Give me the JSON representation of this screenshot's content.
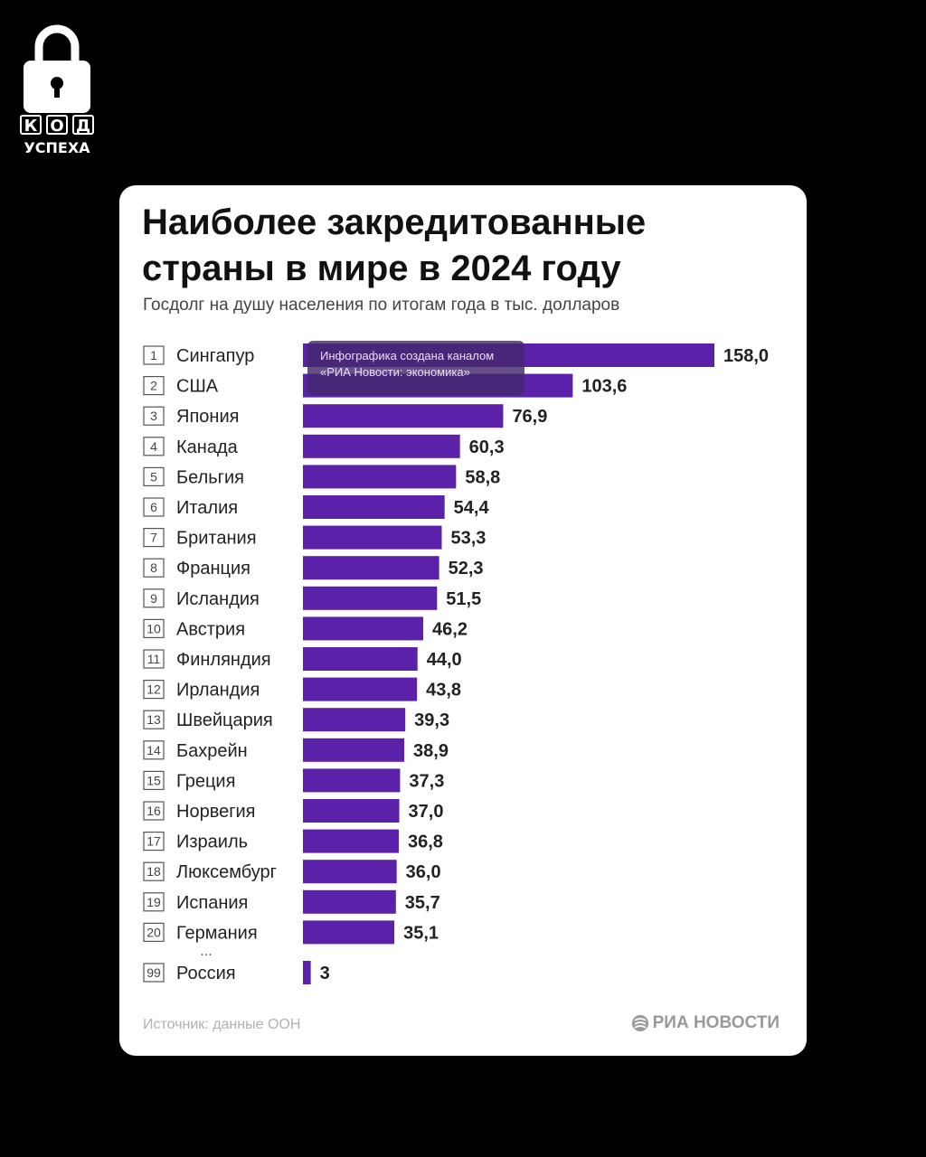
{
  "logo": {
    "letters": [
      "К",
      "О",
      "Д"
    ],
    "subtitle": "УСПЕХА",
    "icon": "padlock-icon"
  },
  "card": {
    "title": "Наиболее закредитованные страны в мире в 2024 году",
    "subtitle": "Госдолг на душу населения по итогам года в тыс. долларов",
    "source": "Источник: данные ООН",
    "brand": "РИА НОВОСТИ",
    "watermark": [
      "Инфографика создана каналом",
      "«РИА Новости: экономика»"
    ],
    "ellipsis": "..."
  },
  "colors": {
    "bar": "#5b21a8",
    "background": "#000000",
    "card": "#ffffff"
  },
  "chart_data": {
    "type": "bar",
    "orientation": "horizontal",
    "title": "Наиболее закредитованные страны в мире в 2024 году",
    "subtitle": "Госдолг на душу населения по итогам года в тыс. долларов",
    "ranks": [
      "1",
      "2",
      "3",
      "4",
      "5",
      "6",
      "7",
      "8",
      "9",
      "10",
      "11",
      "12",
      "13",
      "14",
      "15",
      "16",
      "17",
      "18",
      "19",
      "20",
      "99"
    ],
    "categories": [
      "Сингапур",
      "США",
      "Япония",
      "Канада",
      "Бельгия",
      "Италия",
      "Британия",
      "Франция",
      "Исландия",
      "Австрия",
      "Финляндия",
      "Ирландия",
      "Швейцария",
      "Бахрейн",
      "Греция",
      "Норвегия",
      "Израиль",
      "Люксембург",
      "Испания",
      "Германия",
      "Россия"
    ],
    "values": [
      158.0,
      103.6,
      76.9,
      60.3,
      58.8,
      54.4,
      53.3,
      52.3,
      51.5,
      46.2,
      44.0,
      43.8,
      39.3,
      38.9,
      37.3,
      37.0,
      36.8,
      36.0,
      35.7,
      35.1,
      3
    ],
    "value_labels": [
      "158,0",
      "103,6",
      "76,9",
      "60,3",
      "58,8",
      "54,4",
      "53,3",
      "52,3",
      "51,5",
      "46,2",
      "44,0",
      "43,8",
      "39,3",
      "38,9",
      "37,3",
      "37,0",
      "36,8",
      "36,0",
      "35,7",
      "35,1",
      "3"
    ],
    "xlim": [
      0,
      158
    ],
    "grid": false,
    "legend": "none"
  }
}
